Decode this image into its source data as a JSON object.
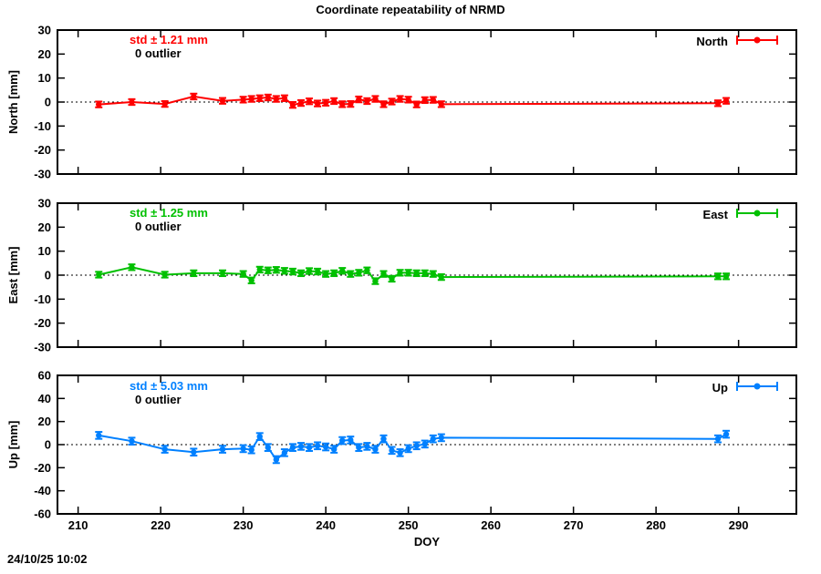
{
  "title": "Coordinate repeatability of NRMD",
  "timestamp": "24/10/25 10:02",
  "xlabel": "DOY",
  "chart_data": {
    "type": "line",
    "grid": false,
    "x_range": [
      207.5,
      297
    ],
    "x_ticks": [
      210,
      220,
      230,
      240,
      250,
      260,
      270,
      280,
      290
    ],
    "x": [
      212.5,
      216.5,
      220.5,
      224,
      227.5,
      230,
      231,
      232,
      233,
      234,
      235,
      236,
      237,
      238,
      239,
      240,
      241,
      242,
      243,
      244,
      245,
      246,
      247,
      248,
      249,
      250,
      251,
      252,
      253,
      254,
      287.5,
      288.5
    ],
    "panels": [
      {
        "id": "north",
        "ylabel": "North [mm]",
        "legend_label": "North",
        "color": "#ff0000",
        "std_label": "std ± 1.21 mm",
        "outlier_label": "0 outlier",
        "y_range": [
          -30,
          30
        ],
        "y_ticks": [
          30,
          20,
          10,
          0,
          -10,
          -20,
          -30
        ],
        "err": 1.2,
        "y": [
          -1,
          0,
          -0.8,
          2.3,
          0.5,
          1,
          1.3,
          1.6,
          1.9,
          1.3,
          1.6,
          -1.2,
          -0.4,
          0.3,
          -0.6,
          -0.3,
          0.4,
          -0.9,
          -0.8,
          1.1,
          0.4,
          1.3,
          -0.9,
          0.2,
          1.3,
          1,
          -1,
          0.8,
          0.9,
          -0.9,
          -0.5,
          0.5
        ]
      },
      {
        "id": "east",
        "ylabel": "East [mm]",
        "legend_label": "East",
        "color": "#00c000",
        "std_label": "std ± 1.25 mm",
        "outlier_label": "0 outlier",
        "y_range": [
          -30,
          30
        ],
        "y_ticks": [
          30,
          20,
          10,
          0,
          -10,
          -20,
          -30
        ],
        "err": 1.2,
        "y": [
          0.2,
          3.3,
          0.2,
          0.8,
          0.8,
          0.5,
          -2.2,
          2.3,
          2.0,
          2.2,
          1.8,
          1.5,
          0.8,
          1.7,
          1.5,
          0.5,
          0.8,
          1.8,
          0.5,
          1.0,
          2.0,
          -2.5,
          0.5,
          -1.5,
          1.0,
          1.0,
          0.8,
          0.8,
          0.5,
          -0.8,
          -0.5,
          -0.5
        ]
      },
      {
        "id": "up",
        "ylabel": "Up [mm]",
        "legend_label": "Up",
        "color": "#0080ff",
        "std_label": "std ± 5.03 mm",
        "outlier_label": "0 outlier",
        "y_range": [
          -60,
          60
        ],
        "y_ticks": [
          60,
          40,
          20,
          0,
          -20,
          -40,
          -60
        ],
        "err": 3,
        "y": [
          8,
          3,
          -4,
          -6.5,
          -4,
          -3.5,
          -4.5,
          7,
          -2.5,
          -13,
          -7,
          -2.5,
          -1.5,
          -2.5,
          -1,
          -2,
          -4,
          3.5,
          4,
          -2.5,
          -1.5,
          -4,
          5,
          -5,
          -7,
          -3.5,
          -1,
          0.5,
          5,
          6,
          5,
          9
        ]
      }
    ]
  }
}
